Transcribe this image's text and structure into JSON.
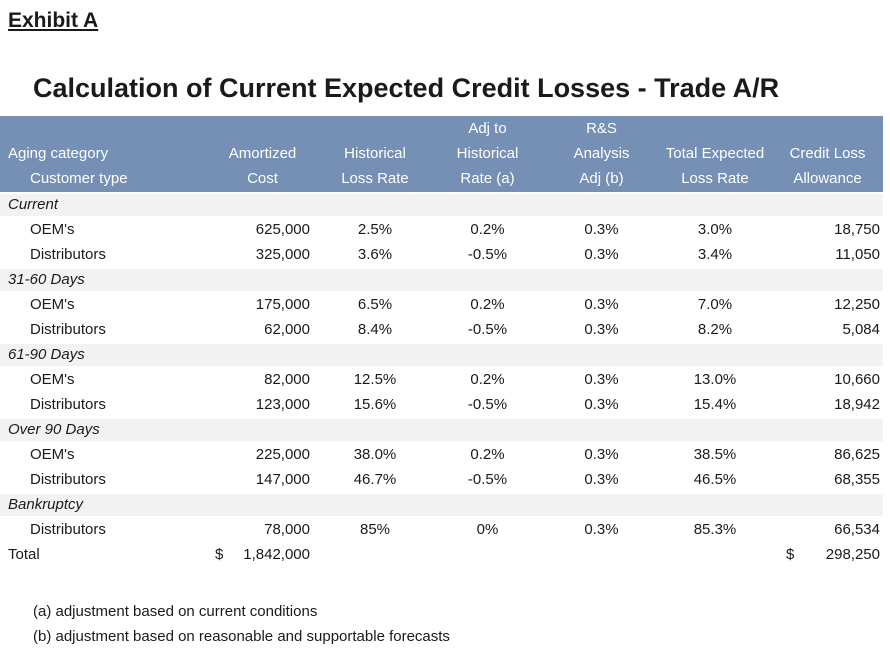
{
  "exhibit": {
    "label": "Exhibit A"
  },
  "title": "Calculation of Current Expected Credit Losses - Trade A/R",
  "table": {
    "header": {
      "aging_category": "Aging category",
      "customer_type": "Customer type",
      "columns": [
        {
          "id": "amortized_cost",
          "lines": [
            "Amortized",
            "Cost"
          ]
        },
        {
          "id": "historical_loss_rate",
          "lines": [
            "Historical",
            "Loss Rate"
          ]
        },
        {
          "id": "adj_to_historical",
          "lines": [
            "Adj to",
            "Historical",
            "Rate (a)"
          ]
        },
        {
          "id": "rs_analysis",
          "lines": [
            "R&S",
            "Analysis",
            "Adj (b)"
          ]
        },
        {
          "id": "total_expected",
          "lines": [
            "Total Expected",
            "Loss Rate"
          ]
        },
        {
          "id": "credit_loss_allowance",
          "lines": [
            "Credit Loss",
            "Allowance"
          ]
        }
      ]
    },
    "groups": [
      {
        "category": "Current",
        "rows": [
          {
            "label": "OEM's",
            "amortized_cost": "625,000",
            "historical_loss_rate": "2.5%",
            "adj_to_historical": "0.2%",
            "rs_analysis": "0.3%",
            "total_expected": "3.0%",
            "credit_loss_allowance": "18,750"
          },
          {
            "label": "Distributors",
            "amortized_cost": "325,000",
            "historical_loss_rate": "3.6%",
            "adj_to_historical": "-0.5%",
            "rs_analysis": "0.3%",
            "total_expected": "3.4%",
            "credit_loss_allowance": "11,050"
          }
        ]
      },
      {
        "category": "31-60 Days",
        "rows": [
          {
            "label": "OEM's",
            "amortized_cost": "175,000",
            "historical_loss_rate": "6.5%",
            "adj_to_historical": "0.2%",
            "rs_analysis": "0.3%",
            "total_expected": "7.0%",
            "credit_loss_allowance": "12,250"
          },
          {
            "label": "Distributors",
            "amortized_cost": "62,000",
            "historical_loss_rate": "8.4%",
            "adj_to_historical": "-0.5%",
            "rs_analysis": "0.3%",
            "total_expected": "8.2%",
            "credit_loss_allowance": "5,084"
          }
        ]
      },
      {
        "category": "61-90 Days",
        "rows": [
          {
            "label": "OEM's",
            "amortized_cost": "82,000",
            "historical_loss_rate": "12.5%",
            "adj_to_historical": "0.2%",
            "rs_analysis": "0.3%",
            "total_expected": "13.0%",
            "credit_loss_allowance": "10,660"
          },
          {
            "label": "Distributors",
            "amortized_cost": "123,000",
            "historical_loss_rate": "15.6%",
            "adj_to_historical": "-0.5%",
            "rs_analysis": "0.3%",
            "total_expected": "15.4%",
            "credit_loss_allowance": "18,942"
          }
        ]
      },
      {
        "category": "Over 90 Days",
        "rows": [
          {
            "label": "OEM's",
            "amortized_cost": "225,000",
            "historical_loss_rate": "38.0%",
            "adj_to_historical": "0.2%",
            "rs_analysis": "0.3%",
            "total_expected": "38.5%",
            "credit_loss_allowance": "86,625"
          },
          {
            "label": "Distributors",
            "amortized_cost": "147,000",
            "historical_loss_rate": "46.7%",
            "adj_to_historical": "-0.5%",
            "rs_analysis": "0.3%",
            "total_expected": "46.5%",
            "credit_loss_allowance": "68,355"
          }
        ]
      },
      {
        "category": "Bankruptcy",
        "rows": [
          {
            "label": "Distributors",
            "amortized_cost": "78,000",
            "historical_loss_rate": "85%",
            "adj_to_historical": "0%",
            "rs_analysis": "0.3%",
            "total_expected": "85.3%",
            "credit_loss_allowance": "66,534"
          }
        ]
      }
    ],
    "total": {
      "label": "Total",
      "amortized_cost_currency": "$",
      "amortized_cost": "1,842,000",
      "allowance_currency": "$",
      "credit_loss_allowance": "298,250"
    }
  },
  "footnotes": [
    "(a) adjustment based on current conditions",
    "(b) adjustment based on reasonable and supportable forecasts"
  ],
  "colors": {
    "header_bg": "#7590B4",
    "header_text": "#FFFFFF",
    "category_row_bg": "#F2F2F2",
    "body_text": "#1A1A1A"
  }
}
